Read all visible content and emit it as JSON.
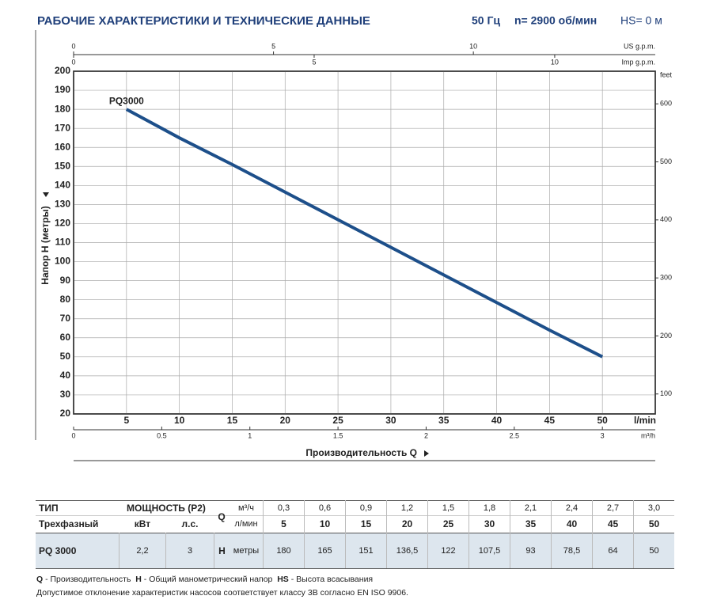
{
  "header": {
    "title": "РАБОЧИЕ ХАРАКТЕРИСТИКИ И ТЕХНИЧЕСКИЕ ДАННЫЕ",
    "frequency": "50 Гц",
    "speed": "n= 2900 об/мин",
    "suction": "HS= 0 м"
  },
  "chart_data": {
    "type": "line",
    "ylabel": "Напор H (метры)",
    "xlabel": "Производительность Q",
    "xunit": "l/min",
    "y2label": "feet",
    "x": [
      5,
      10,
      15,
      20,
      25,
      30,
      35,
      40,
      45,
      50
    ],
    "series": [
      {
        "name": "PQ3000",
        "color": "#1d4f8a",
        "values": [
          180,
          165,
          151,
          136.5,
          122,
          107.5,
          93,
          78.5,
          64,
          50
        ]
      }
    ],
    "xlim": [
      0,
      55
    ],
    "xticks": [
      5,
      10,
      15,
      20,
      25,
      30,
      35,
      40,
      45,
      50
    ],
    "ylim": [
      20,
      200
    ],
    "yticks": [
      20,
      30,
      40,
      50,
      60,
      70,
      80,
      90,
      100,
      110,
      120,
      130,
      140,
      150,
      160,
      170,
      180,
      190,
      200
    ],
    "y2lim": [
      65.6,
      656.2
    ],
    "y2ticks": [
      100,
      200,
      300,
      400,
      500,
      600
    ],
    "us_gpm_axis": {
      "label": "US g.p.m.",
      "lim": [
        0,
        14.55
      ],
      "ticks": [
        0,
        5,
        10
      ]
    },
    "imp_gpm_axis": {
      "label": "Imp g.p.m.",
      "lim": [
        0,
        12.09
      ],
      "ticks": [
        0,
        5,
        10
      ]
    },
    "m3h_axis": {
      "label": "m³/h",
      "lim": [
        0,
        3.3
      ],
      "ticks": [
        0,
        0.5,
        1,
        1.5,
        2,
        2.5,
        3
      ]
    },
    "grid": true
  },
  "table": {
    "header": [
      "ТИП",
      "МОЩНОСТЬ (P2)",
      "Q",
      "м³/ч"
    ],
    "subheader": [
      "Трехфазный",
      "кВт",
      "л.с.",
      "л/мин"
    ],
    "flow_m3h": [
      "0,3",
      "0,6",
      "0,9",
      "1,2",
      "1,5",
      "1,8",
      "2,1",
      "2,4",
      "2,7",
      "3,0"
    ],
    "flow_lmin": [
      "5",
      "10",
      "15",
      "20",
      "25",
      "30",
      "35",
      "40",
      "45",
      "50"
    ],
    "rows": [
      {
        "type": "PQ 3000",
        "kw": "2,2",
        "hp": "3",
        "h_symbol": "H",
        "h_unit": "метры",
        "head": [
          "180",
          "165",
          "151",
          "136,5",
          "122",
          "107,5",
          "93",
          "78,5",
          "64",
          "50"
        ]
      }
    ]
  },
  "footnotes": {
    "legend": [
      {
        "key": "Q",
        "text": " - Производительность  "
      },
      {
        "key": "H",
        "text": " - Общий манометрический напор  "
      },
      {
        "key": "HS",
        "text": " - Высота всасывания"
      }
    ],
    "tolerance": "Допустимое отклонение характеристик насосов соответствует классу 3B согласно EN ISO 9906."
  }
}
